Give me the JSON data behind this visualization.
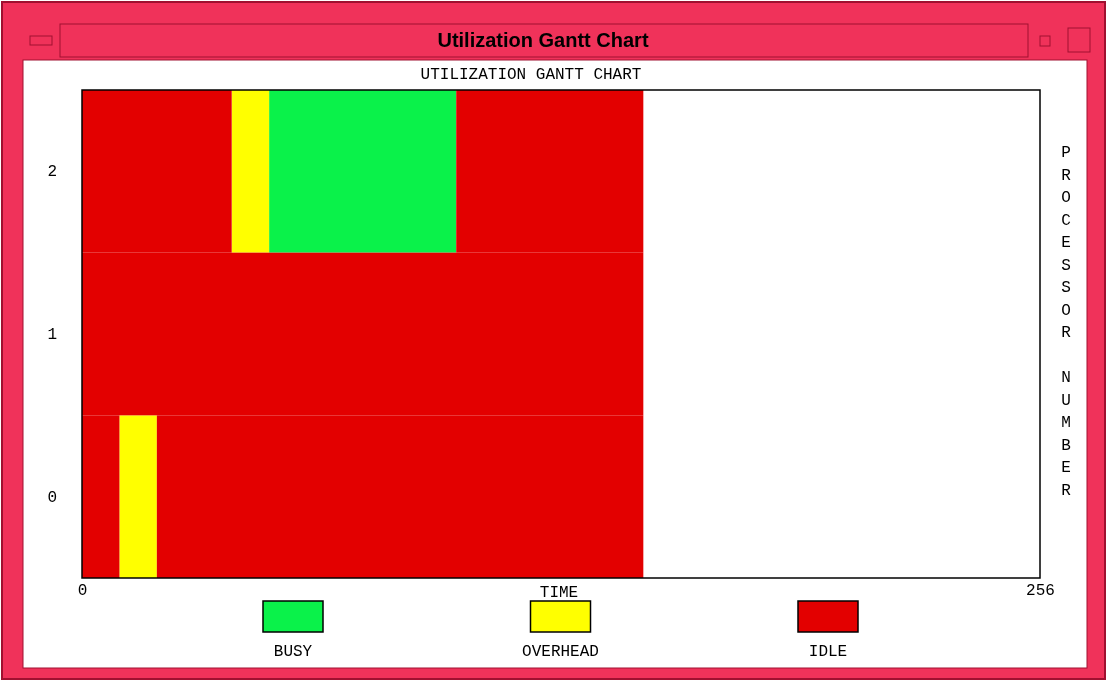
{
  "chart_data": {
    "type": "bar",
    "orientation": "horizontal",
    "title": "Utilization Gantt Chart",
    "subtitle": "UTILIZATION GANTT CHART",
    "xlabel": "TIME",
    "ylabel": "PROCESSOR NUMBER",
    "categories": [
      "2",
      "1",
      "0"
    ],
    "xlim": [
      0,
      256
    ],
    "xticks": [
      0,
      256
    ],
    "legend": "bottom",
    "series": [
      {
        "name": "BUSY",
        "color": "#0af24a",
        "values": [
          50,
          null,
          null
        ],
        "base": [
          50,
          null,
          null
        ]
      },
      {
        "name": "OVERHEAD",
        "color": "#ffff00",
        "values": [
          10,
          null,
          10
        ],
        "base": [
          40,
          null,
          10
        ]
      },
      {
        "name": "IDLE",
        "color": "#e30000",
        "values": [
          40,
          150,
          10
        ],
        "base": [
          0,
          0,
          0
        ]
      },
      {
        "color": "#e30000",
        "values": [
          50,
          null,
          130
        ],
        "base": [
          100,
          null,
          20
        ]
      }
    ]
  }
}
